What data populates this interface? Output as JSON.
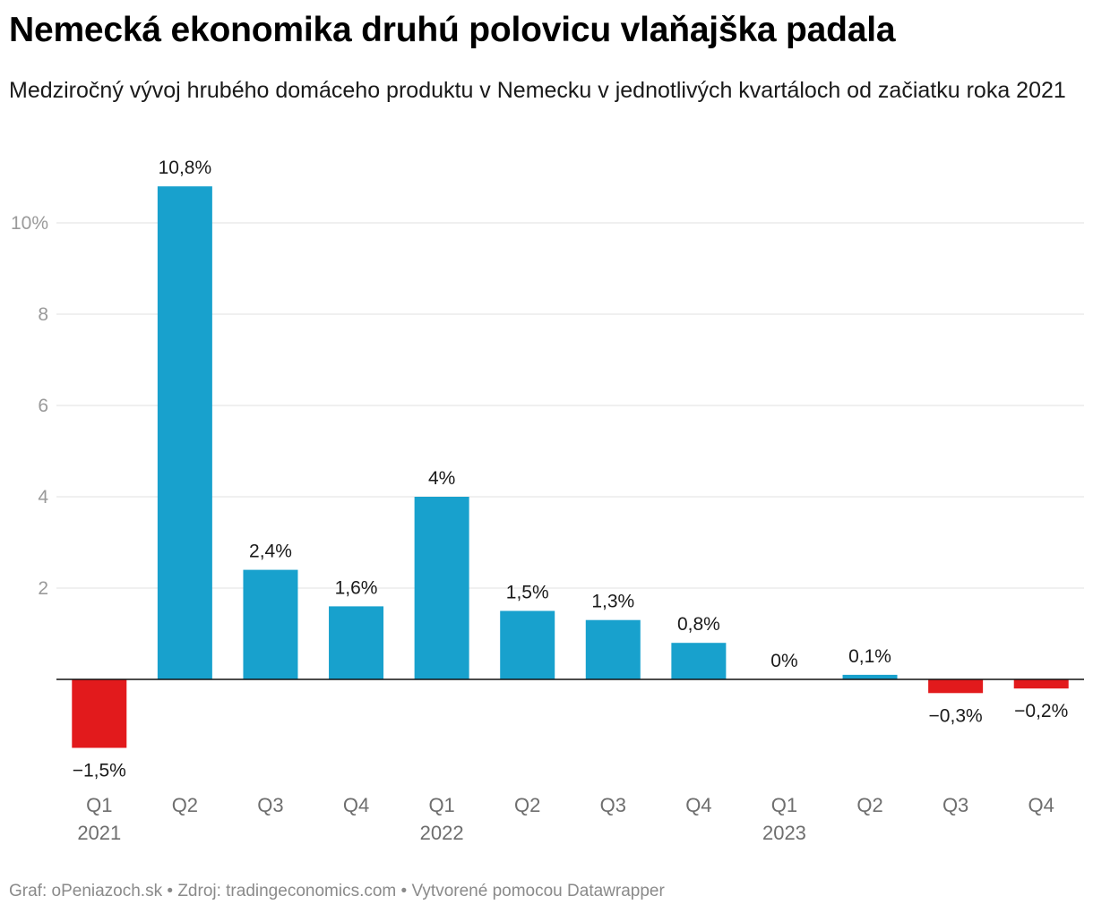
{
  "title": "Nemecká ekonomika druhú polovicu vlaňajška padala",
  "subtitle": "Medziročný vývoj hrubého domáceho produktu v Nemecku v jednotlivých kvartáloch od začiatku roka 2021",
  "footer": {
    "credit": "Graf: oPeniazoch.sk",
    "source": "Zdroj: tradingeconomics.com",
    "tool": "Vytvorené pomocou Datawrapper"
  },
  "chart_data": {
    "type": "bar",
    "title": "Nemecká ekonomika druhú polovicu vlaňajška padala",
    "ylabel": "",
    "xlabel": "",
    "categories": [
      "Q1 2021",
      "Q2 2021",
      "Q3 2021",
      "Q4 2021",
      "Q1 2022",
      "Q2 2022",
      "Q3 2022",
      "Q4 2022",
      "Q1 2023",
      "Q2 2023",
      "Q3 2023",
      "Q4 2023"
    ],
    "quarter_labels": [
      "Q1",
      "Q2",
      "Q3",
      "Q4",
      "Q1",
      "Q2",
      "Q3",
      "Q4",
      "Q1",
      "Q2",
      "Q3",
      "Q4"
    ],
    "year_labels": [
      "2021",
      "",
      "",
      "",
      "2022",
      "",
      "",
      "",
      "2023",
      "",
      "",
      ""
    ],
    "values": [
      -1.5,
      10.8,
      2.4,
      1.6,
      4.0,
      1.5,
      1.3,
      0.8,
      0.0,
      0.1,
      -0.3,
      -0.2
    ],
    "value_labels": [
      "−1,5%",
      "10,8%",
      "2,4%",
      "1,6%",
      "4%",
      "1,5%",
      "1,3%",
      "0,8%",
      "0%",
      "0,1%",
      "−0,3%",
      "−0,2%"
    ],
    "yticks": [
      2,
      4,
      6,
      8,
      10
    ],
    "ytick_labels": [
      "2",
      "4",
      "6",
      "8",
      "10%"
    ],
    "ylim": [
      -2.2,
      11.5
    ],
    "colors": {
      "positive": "#18a1cd",
      "negative": "#e21a1c"
    },
    "grid": true
  }
}
